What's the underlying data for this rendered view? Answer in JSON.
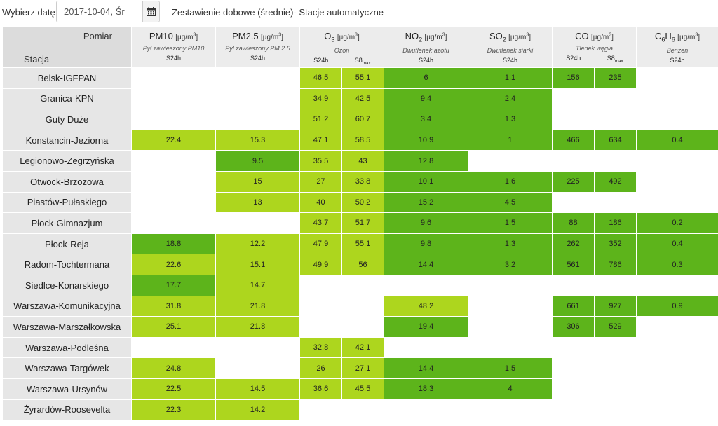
{
  "toolbar": {
    "date_label": "Wybierz datę:",
    "date_value": "2017-10-04, Śr",
    "calendar_icon": "calendar-icon",
    "report_title": "Zestawienie dobowe (średnie)- Stacje automatyczne"
  },
  "header": {
    "pomiar": "Pomiar",
    "stacja": "Stacja",
    "params": [
      {
        "id": "pm10",
        "name": "PM10",
        "unit_pre": "[µg/m",
        "unit_post": "]",
        "desc": "Pył zawieszony PM10",
        "subs": [
          "S24h"
        ]
      },
      {
        "id": "pm25",
        "name": "PM2.5",
        "unit_pre": "[µg/m",
        "unit_post": "]",
        "desc": "Pył zawieszony PM 2.5",
        "subs": [
          "S24h"
        ]
      },
      {
        "id": "o3",
        "name": "O",
        "name_sub": "3",
        "unit_pre": "[µg/m",
        "unit_post": "]",
        "desc": "Ozon",
        "subs": [
          "S24h",
          "S8",
          "max"
        ]
      },
      {
        "id": "no2",
        "name": "NO",
        "name_sub": "2",
        "unit_pre": "[µg/m",
        "unit_post": "]",
        "desc": "Dwutlenek azotu",
        "subs": [
          "S24h"
        ]
      },
      {
        "id": "so2",
        "name": "SO",
        "name_sub": "2",
        "unit_pre": "[µg/m",
        "unit_post": "]",
        "desc": "Dwutlenek siarki",
        "subs": [
          "S24h"
        ]
      },
      {
        "id": "co",
        "name": "CO",
        "unit_pre": "[µg/m",
        "unit_post": "]",
        "desc": "Tlenek węgla",
        "subs": [
          "S24h",
          "S8",
          "max"
        ]
      },
      {
        "id": "c6h6",
        "name": "C",
        "name_sub": "6",
        "name2": "H",
        "name_sub2": "6",
        "unit_pre": "[µg/m",
        "unit_post": "]",
        "desc": "Benzen",
        "subs": [
          "S24h"
        ]
      }
    ],
    "unit_sup": "3"
  },
  "colors": {
    "light_green": "#add61e",
    "dark_green": "#5db41b",
    "station_bg": "#e6e6e6",
    "header_bg": "#ececec"
  },
  "columns": [
    "pm10",
    "pm25",
    "o3_24",
    "o3_8",
    "no2",
    "so2",
    "co_24",
    "co_8",
    "c6h6"
  ],
  "rows": [
    {
      "station": "Belsk-IGFPAN",
      "cells": [
        [
          "",
          ""
        ],
        [
          "",
          ""
        ],
        [
          "46.5",
          "lg"
        ],
        [
          "55.1",
          "lg"
        ],
        [
          "6",
          "dg"
        ],
        [
          "1.1",
          "dg"
        ],
        [
          "156",
          "dg"
        ],
        [
          "235",
          "dg"
        ],
        [
          "",
          ""
        ]
      ]
    },
    {
      "station": "Granica-KPN",
      "cells": [
        [
          "",
          ""
        ],
        [
          "",
          ""
        ],
        [
          "34.9",
          "lg"
        ],
        [
          "42.5",
          "lg"
        ],
        [
          "9.4",
          "dg"
        ],
        [
          "2.4",
          "dg"
        ],
        [
          "",
          ""
        ],
        [
          "",
          ""
        ],
        [
          "",
          ""
        ]
      ]
    },
    {
      "station": "Guty Duże",
      "cells": [
        [
          "",
          ""
        ],
        [
          "",
          ""
        ],
        [
          "51.2",
          "lg"
        ],
        [
          "60.7",
          "lg"
        ],
        [
          "3.4",
          "dg"
        ],
        [
          "1.3",
          "dg"
        ],
        [
          "",
          ""
        ],
        [
          "",
          ""
        ],
        [
          "",
          ""
        ]
      ]
    },
    {
      "station": "Konstancin-Jeziorna",
      "cells": [
        [
          "22.4",
          "lg"
        ],
        [
          "15.3",
          "lg"
        ],
        [
          "47.1",
          "lg"
        ],
        [
          "58.5",
          "lg"
        ],
        [
          "10.9",
          "dg"
        ],
        [
          "1",
          "dg"
        ],
        [
          "466",
          "dg"
        ],
        [
          "634",
          "dg"
        ],
        [
          "0.4",
          "dg"
        ]
      ]
    },
    {
      "station": "Legionowo-Zegrzyńska",
      "cells": [
        [
          "",
          ""
        ],
        [
          "9.5",
          "dg"
        ],
        [
          "35.5",
          "lg"
        ],
        [
          "43",
          "lg"
        ],
        [
          "12.8",
          "dg"
        ],
        [
          "",
          ""
        ],
        [
          "",
          ""
        ],
        [
          "",
          ""
        ],
        [
          "",
          ""
        ]
      ]
    },
    {
      "station": "Otwock-Brzozowa",
      "cells": [
        [
          "",
          ""
        ],
        [
          "15",
          "lg"
        ],
        [
          "27",
          "lg"
        ],
        [
          "33.8",
          "lg"
        ],
        [
          "10.1",
          "dg"
        ],
        [
          "1.6",
          "dg"
        ],
        [
          "225",
          "dg"
        ],
        [
          "492",
          "dg"
        ],
        [
          "",
          ""
        ]
      ]
    },
    {
      "station": "Piastów-Pułaskiego",
      "cells": [
        [
          "",
          ""
        ],
        [
          "13",
          "lg"
        ],
        [
          "40",
          "lg"
        ],
        [
          "50.2",
          "lg"
        ],
        [
          "15.2",
          "dg"
        ],
        [
          "4.5",
          "dg"
        ],
        [
          "",
          ""
        ],
        [
          "",
          ""
        ],
        [
          "",
          ""
        ]
      ]
    },
    {
      "station": "Płock-Gimnazjum",
      "cells": [
        [
          "",
          ""
        ],
        [
          "",
          ""
        ],
        [
          "43.7",
          "lg"
        ],
        [
          "51.7",
          "lg"
        ],
        [
          "9.6",
          "dg"
        ],
        [
          "1.5",
          "dg"
        ],
        [
          "88",
          "dg"
        ],
        [
          "186",
          "dg"
        ],
        [
          "0.2",
          "dg"
        ]
      ]
    },
    {
      "station": "Płock-Reja",
      "cells": [
        [
          "18.8",
          "dg"
        ],
        [
          "12.2",
          "lg"
        ],
        [
          "47.9",
          "lg"
        ],
        [
          "55.1",
          "lg"
        ],
        [
          "9.8",
          "dg"
        ],
        [
          "1.3",
          "dg"
        ],
        [
          "262",
          "dg"
        ],
        [
          "352",
          "dg"
        ],
        [
          "0.4",
          "dg"
        ]
      ]
    },
    {
      "station": "Radom-Tochtermana",
      "cells": [
        [
          "22.6",
          "lg"
        ],
        [
          "15.1",
          "lg"
        ],
        [
          "49.9",
          "lg"
        ],
        [
          "56",
          "lg"
        ],
        [
          "14.4",
          "dg"
        ],
        [
          "3.2",
          "dg"
        ],
        [
          "561",
          "dg"
        ],
        [
          "786",
          "dg"
        ],
        [
          "0.3",
          "dg"
        ]
      ]
    },
    {
      "station": "Siedlce-Konarskiego",
      "cells": [
        [
          "17.7",
          "dg"
        ],
        [
          "14.7",
          "lg"
        ],
        [
          "",
          ""
        ],
        [
          "",
          ""
        ],
        [
          "",
          ""
        ],
        [
          "",
          ""
        ],
        [
          "",
          ""
        ],
        [
          "",
          ""
        ],
        [
          "",
          ""
        ]
      ]
    },
    {
      "station": "Warszawa-Komunikacyjna",
      "cells": [
        [
          "31.8",
          "lg"
        ],
        [
          "21.8",
          "lg"
        ],
        [
          "",
          ""
        ],
        [
          "",
          ""
        ],
        [
          "48.2",
          "lg"
        ],
        [
          "",
          ""
        ],
        [
          "661",
          "dg"
        ],
        [
          "927",
          "dg"
        ],
        [
          "0.9",
          "dg"
        ]
      ]
    },
    {
      "station": "Warszawa-Marszałkowska",
      "cells": [
        [
          "25.1",
          "lg"
        ],
        [
          "21.8",
          "lg"
        ],
        [
          "",
          ""
        ],
        [
          "",
          ""
        ],
        [
          "19.4",
          "dg"
        ],
        [
          "",
          ""
        ],
        [
          "306",
          "dg"
        ],
        [
          "529",
          "dg"
        ],
        [
          "",
          ""
        ]
      ]
    },
    {
      "station": "Warszawa-Podleśna",
      "cells": [
        [
          "",
          ""
        ],
        [
          "",
          ""
        ],
        [
          "32.8",
          "lg"
        ],
        [
          "42.1",
          "lg"
        ],
        [
          "",
          ""
        ],
        [
          "",
          ""
        ],
        [
          "",
          ""
        ],
        [
          "",
          ""
        ],
        [
          "",
          ""
        ]
      ]
    },
    {
      "station": "Warszawa-Targówek",
      "cells": [
        [
          "24.8",
          "lg"
        ],
        [
          "",
          ""
        ],
        [
          "26",
          "lg"
        ],
        [
          "27.1",
          "lg"
        ],
        [
          "14.4",
          "dg"
        ],
        [
          "1.5",
          "dg"
        ],
        [
          "",
          ""
        ],
        [
          "",
          ""
        ],
        [
          "",
          ""
        ]
      ]
    },
    {
      "station": "Warszawa-Ursynów",
      "cells": [
        [
          "22.5",
          "lg"
        ],
        [
          "14.5",
          "lg"
        ],
        [
          "36.6",
          "lg"
        ],
        [
          "45.5",
          "lg"
        ],
        [
          "18.3",
          "dg"
        ],
        [
          "4",
          "dg"
        ],
        [
          "",
          ""
        ],
        [
          "",
          ""
        ],
        [
          "",
          ""
        ]
      ]
    },
    {
      "station": "Żyrardów-Roosevelta",
      "cells": [
        [
          "22.3",
          "lg"
        ],
        [
          "14.2",
          "lg"
        ],
        [
          "",
          ""
        ],
        [
          "",
          ""
        ],
        [
          "",
          ""
        ],
        [
          "",
          ""
        ],
        [
          "",
          ""
        ],
        [
          "",
          ""
        ],
        [
          "",
          ""
        ]
      ]
    }
  ]
}
